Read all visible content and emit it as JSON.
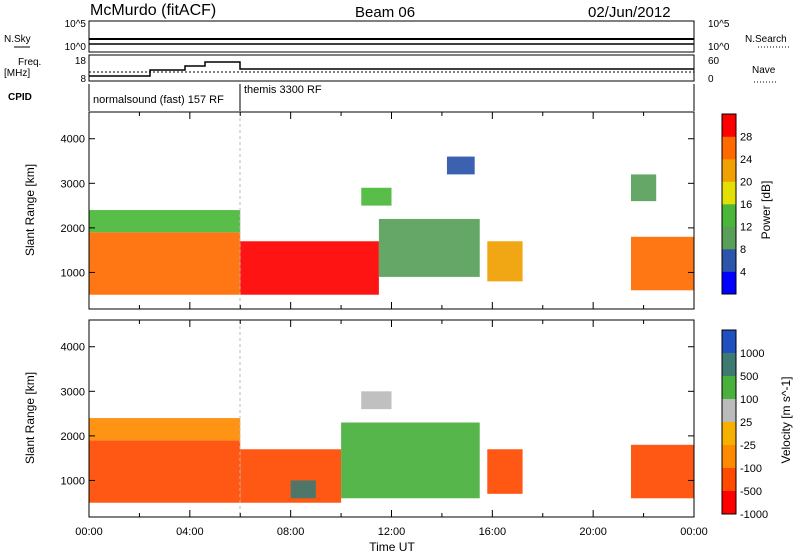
{
  "header": {
    "station": "McMurdo (fitACF)",
    "beam": "Beam 06",
    "date": "02/Jun/2012"
  },
  "panels": {
    "sky_label": "N.Sky",
    "search_label": "N.Search",
    "freq_label_top": "Freq.",
    "freq_label_bottom": "[MHz]",
    "nave_label": "Nave",
    "cpid_label": "CPID",
    "noise_ticks": [
      "10^5",
      "10^0"
    ],
    "freq_ticks": [
      "18",
      "8"
    ],
    "nave_ticks": [
      "60",
      "0"
    ],
    "cpid_segments": [
      {
        "label": "normalsound (fast) 157 RF",
        "start": "00:00",
        "end": "06:00"
      },
      {
        "label": "themis 3300 RF",
        "start": "06:00",
        "end": "24:00"
      }
    ]
  },
  "colors": {
    "power": [
      "#0000ff",
      "#2b54aa",
      "#58a05a",
      "#4ab73a",
      "#e2e000",
      "#f0a000",
      "#ff6a00",
      "#ff0000"
    ],
    "velocity": [
      "#2050c0",
      "#3f7a72",
      "#49b03c",
      "#bbbbbb",
      "#f5b000",
      "#ff8a00",
      "#ff4a00",
      "#ff0000"
    ]
  },
  "chart_data": [
    {
      "type": "heatmap",
      "title": "Power",
      "xlabel": "",
      "ylabel": "Slant Range [km]",
      "xlim": [
        "00:00",
        "24:00"
      ],
      "ylim": [
        180,
        4600
      ],
      "x_ticks": [
        "00:00",
        "04:00",
        "08:00",
        "12:00",
        "16:00",
        "20:00",
        "00:00"
      ],
      "y_ticks": [
        1000,
        2000,
        3000,
        4000
      ],
      "colorbar": {
        "label": "Power [dB]",
        "ticks": [
          "4",
          "8",
          "12",
          "16",
          "20",
          "24",
          "28"
        ],
        "range": [
          0,
          32
        ]
      },
      "regions": [
        {
          "t0": 0.0,
          "t1": 6.0,
          "r0": 500,
          "r1": 1900,
          "value": 25
        },
        {
          "t0": 0.0,
          "t1": 6.0,
          "r0": 1900,
          "r1": 2400,
          "value": 13
        },
        {
          "t0": 6.0,
          "t1": 11.5,
          "r0": 500,
          "r1": 1700,
          "value": 30
        },
        {
          "t0": 10.8,
          "t1": 12.0,
          "r0": 2500,
          "r1": 2900,
          "value": 14
        },
        {
          "t0": 11.5,
          "t1": 15.5,
          "r0": 900,
          "r1": 2200,
          "value": 11
        },
        {
          "t0": 14.2,
          "t1": 15.3,
          "r0": 3200,
          "r1": 3600,
          "value": 6
        },
        {
          "t0": 15.8,
          "t1": 17.2,
          "r0": 800,
          "r1": 1700,
          "value": 22
        },
        {
          "t0": 21.5,
          "t1": 24.0,
          "r0": 600,
          "r1": 1800,
          "value": 27
        },
        {
          "t0": 21.5,
          "t1": 22.5,
          "r0": 2600,
          "r1": 3200,
          "value": 10
        }
      ]
    },
    {
      "type": "heatmap",
      "title": "Velocity",
      "xlabel": "Time UT",
      "ylabel": "Slant Range [km]",
      "xlim": [
        "00:00",
        "24:00"
      ],
      "ylim": [
        180,
        4600
      ],
      "x_ticks": [
        "00:00",
        "04:00",
        "08:00",
        "12:00",
        "16:00",
        "20:00",
        "00:00"
      ],
      "y_ticks": [
        1000,
        2000,
        3000,
        4000
      ],
      "colorbar": {
        "label": "Velocity [m s^-1]",
        "ticks": [
          "1000",
          "500",
          "100",
          "25",
          "-25",
          "-100",
          "-500",
          "-1000"
        ]
      },
      "regions": [
        {
          "t0": 0.0,
          "t1": 6.0,
          "r0": 500,
          "r1": 1900,
          "value": -300
        },
        {
          "t0": 0.0,
          "t1": 6.0,
          "r0": 1900,
          "r1": 2400,
          "value": -60
        },
        {
          "t0": 6.0,
          "t1": 10.0,
          "r0": 500,
          "r1": 1700,
          "value": -200
        },
        {
          "t0": 8.0,
          "t1": 9.0,
          "r0": 600,
          "r1": 1000,
          "value": 800
        },
        {
          "t0": 10.0,
          "t1": 15.5,
          "r0": 600,
          "r1": 2300,
          "value": 300
        },
        {
          "t0": 10.8,
          "t1": 12.0,
          "r0": 2600,
          "r1": 3000,
          "value": 60
        },
        {
          "t0": 15.8,
          "t1": 17.2,
          "r0": 700,
          "r1": 1700,
          "value": -300
        },
        {
          "t0": 21.5,
          "t1": 24.0,
          "r0": 600,
          "r1": 1800,
          "value": -300
        }
      ]
    }
  ]
}
